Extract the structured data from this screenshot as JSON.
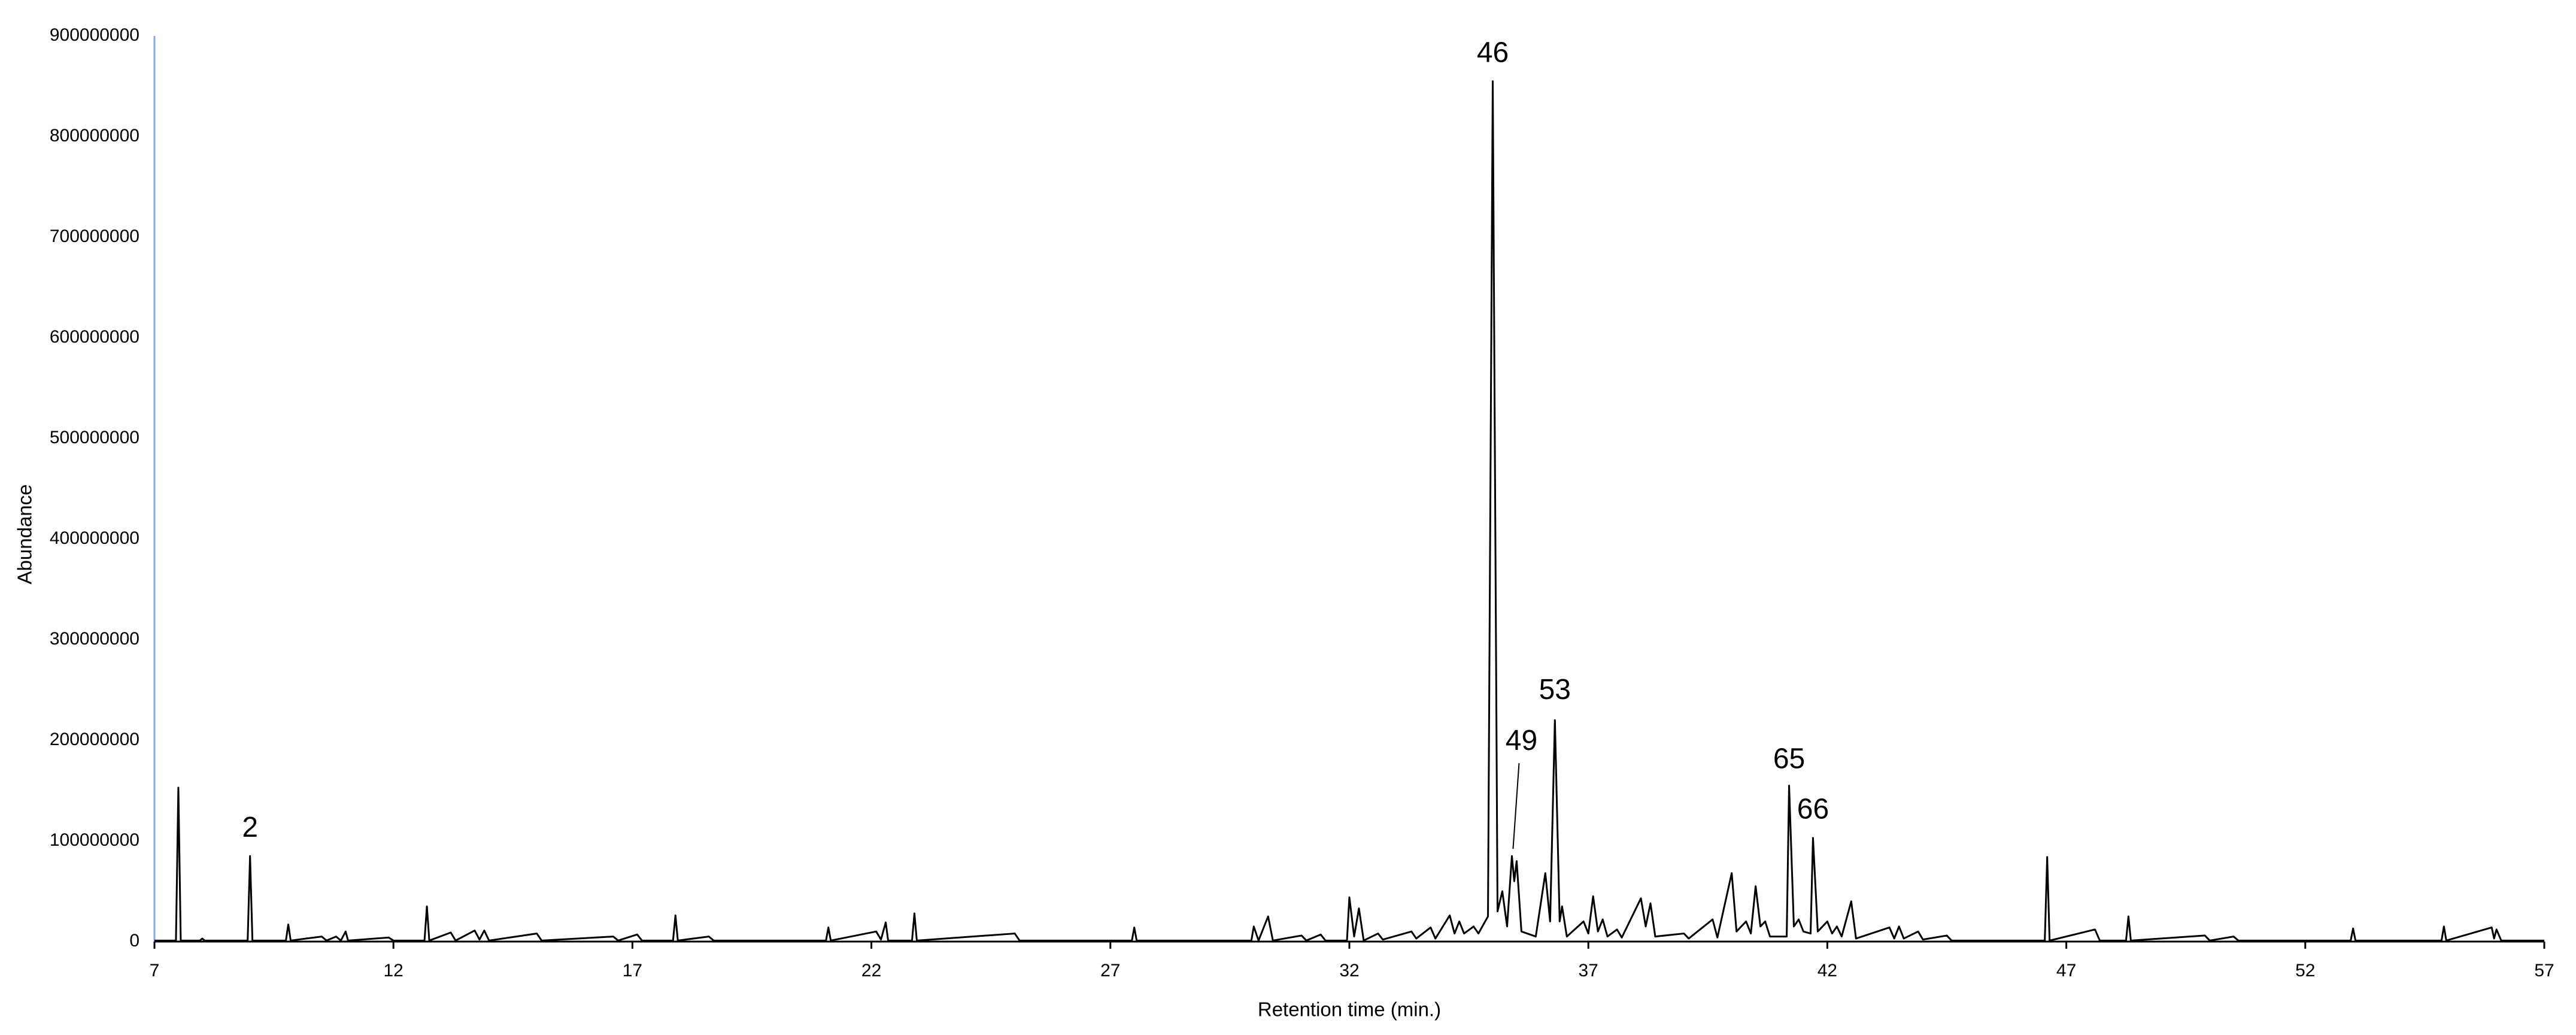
{
  "chart_data": {
    "type": "line",
    "xlabel": "Retention time (min.)",
    "ylabel": "Abundance",
    "color": "#000000",
    "xlim": [
      7,
      57
    ],
    "xticks": [
      7,
      12,
      17,
      22,
      27,
      32,
      37,
      42,
      47,
      52,
      57
    ],
    "ylim": [
      0,
      900000000
    ],
    "yticks": [
      0,
      100000000,
      200000000,
      300000000,
      400000000,
      500000000,
      600000000,
      700000000,
      800000000,
      900000000
    ],
    "grid": false,
    "x": [
      7.0,
      7.45,
      7.5,
      7.55,
      7.95,
      8.0,
      8.05,
      8.95,
      9.0,
      9.05,
      9.75,
      9.8,
      9.85,
      10.5,
      10.6,
      10.8,
      10.9,
      11.0,
      11.05,
      11.9,
      12.0,
      12.65,
      12.7,
      12.75,
      13.2,
      13.3,
      13.7,
      13.8,
      13.9,
      14.0,
      15.0,
      15.1,
      16.6,
      16.7,
      17.1,
      17.2,
      17.85,
      17.9,
      17.95,
      18.6,
      18.7,
      21.05,
      21.1,
      21.15,
      22.1,
      22.2,
      22.3,
      22.35,
      22.85,
      22.9,
      22.95,
      25.0,
      25.1,
      27.45,
      27.5,
      27.55,
      29.95,
      30.0,
      30.1,
      30.3,
      30.4,
      31.0,
      31.1,
      31.4,
      31.5,
      31.95,
      32.0,
      32.1,
      32.2,
      32.3,
      32.6,
      32.7,
      33.3,
      33.4,
      33.7,
      33.8,
      34.1,
      34.2,
      34.3,
      34.4,
      34.6,
      34.7,
      34.9,
      35.0,
      35.1,
      35.2,
      35.3,
      35.4,
      35.45,
      35.5,
      35.6,
      35.9,
      36.1,
      36.2,
      36.3,
      36.4,
      36.45,
      36.55,
      36.9,
      37.0,
      37.1,
      37.2,
      37.3,
      37.4,
      37.6,
      37.7,
      38.1,
      38.2,
      38.3,
      38.4,
      39.0,
      39.1,
      39.6,
      39.7,
      40.0,
      40.1,
      40.3,
      40.4,
      40.5,
      40.6,
      40.7,
      40.8,
      41.15,
      41.2,
      41.3,
      41.4,
      41.5,
      41.65,
      41.7,
      41.8,
      42.0,
      42.1,
      42.2,
      42.3,
      42.5,
      42.6,
      43.3,
      43.4,
      43.5,
      43.6,
      43.9,
      44.0,
      44.5,
      44.6,
      46.55,
      46.6,
      46.65,
      47.6,
      47.7,
      48.25,
      48.3,
      48.35,
      49.9,
      50.0,
      50.5,
      50.6,
      52.95,
      53.0,
      53.05,
      54.85,
      54.9,
      54.95,
      55.9,
      55.95,
      56.0,
      56.1,
      57.0
    ],
    "values": [
      1000000,
      1000000,
      153000000,
      1000000,
      1000000,
      3000000,
      1000000,
      1000000,
      85000000,
      1000000,
      1000000,
      17000000,
      1000000,
      5000000,
      1000000,
      5000000,
      1000000,
      10000000,
      1000000,
      4000000,
      1000000,
      1000000,
      35000000,
      1000000,
      9000000,
      1000000,
      11000000,
      2000000,
      11000000,
      1000000,
      8000000,
      1000000,
      5000000,
      1000000,
      7000000,
      1000000,
      1000000,
      26000000,
      1000000,
      5000000,
      1000000,
      1000000,
      14000000,
      1000000,
      10000000,
      2000000,
      19000000,
      1000000,
      1000000,
      28000000,
      1000000,
      8000000,
      1000000,
      1000000,
      14000000,
      1000000,
      1000000,
      15000000,
      1000000,
      25000000,
      1000000,
      6000000,
      1000000,
      7000000,
      1000000,
      1000000,
      44000000,
      5000000,
      33000000,
      1000000,
      8000000,
      2000000,
      10000000,
      3000000,
      14000000,
      3000000,
      26000000,
      8000000,
      20000000,
      8000000,
      15000000,
      8000000,
      25000000,
      855000000,
      30000000,
      50000000,
      15000000,
      85000000,
      60000000,
      80000000,
      10000000,
      5000000,
      68000000,
      20000000,
      220000000,
      20000000,
      35000000,
      5000000,
      20000000,
      8000000,
      45000000,
      10000000,
      22000000,
      5000000,
      12000000,
      4000000,
      43000000,
      15000000,
      38000000,
      5000000,
      8000000,
      3000000,
      22000000,
      4000000,
      68000000,
      10000000,
      20000000,
      8000000,
      55000000,
      15000000,
      20000000,
      5000000,
      5000000,
      155000000,
      15000000,
      22000000,
      10000000,
      8000000,
      103000000,
      10000000,
      20000000,
      8000000,
      15000000,
      5000000,
      40000000,
      3000000,
      14000000,
      3000000,
      15000000,
      3000000,
      10000000,
      2000000,
      6000000,
      1000000,
      1000000,
      84000000,
      1000000,
      12000000,
      1000000,
      1000000,
      25000000,
      1000000,
      6000000,
      1000000,
      5000000,
      1000000,
      1000000,
      13000000,
      1000000,
      1000000,
      15000000,
      1000000,
      14000000,
      3000000,
      12000000,
      1000000,
      1000000
    ],
    "annotations": [
      {
        "text": "2",
        "x": 9.0,
        "y": 85000000
      },
      {
        "text": "46",
        "x": 35.0,
        "y": 855000000
      },
      {
        "text": "49",
        "x": 35.4,
        "y": 85000000
      },
      {
        "text": "53",
        "x": 36.3,
        "y": 220000000
      },
      {
        "text": "65",
        "x": 41.2,
        "y": 155000000
      },
      {
        "text": "66",
        "x": 41.7,
        "y": 103000000
      }
    ]
  }
}
